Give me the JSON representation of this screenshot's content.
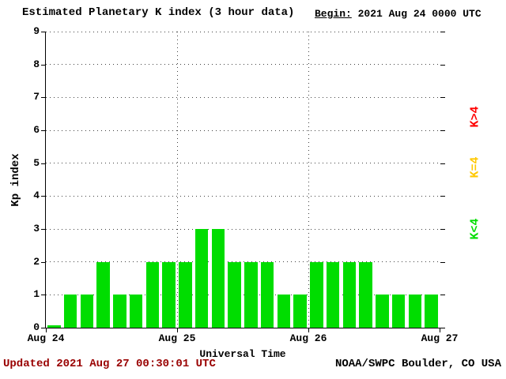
{
  "header": {
    "title": "Estimated Planetary K index (3 hour data)",
    "begin_label": "Begin:",
    "begin_value": "2021 Aug 24 0000 UTC"
  },
  "chart_data": {
    "type": "bar",
    "title": "Estimated Planetary K index (3 hour data)",
    "xlabel": "Universal Time",
    "ylabel": "Kp index",
    "ylim": [
      0,
      9
    ],
    "y_ticks": [
      0,
      1,
      2,
      3,
      4,
      5,
      6,
      7,
      8,
      9
    ],
    "x_ticks": [
      "Aug 24",
      "Aug 25",
      "Aug 26",
      "Aug 27"
    ],
    "interval_hours": 3,
    "begin": "2021 Aug 24 0000 UTC",
    "grid": true,
    "values": [
      0,
      1,
      1,
      2,
      1,
      1,
      2,
      2,
      2,
      3,
      3,
      2,
      2,
      2,
      1,
      1,
      2,
      2,
      2,
      2,
      1,
      1,
      1,
      1
    ],
    "bar_color_rule": {
      "lt4": "#00dd00",
      "eq4": "#ffc800",
      "gt4": "#ff0000"
    },
    "legend": [
      {
        "label": "K>4",
        "color": "#ff0000"
      },
      {
        "label": "K=4",
        "color": "#ffc800"
      },
      {
        "label": "K<4",
        "color": "#00dd00"
      }
    ]
  },
  "footer": {
    "updated": "Updated 2021 Aug 27 00:30:01 UTC",
    "source": "NOAA/SWPC Boulder, CO USA"
  }
}
